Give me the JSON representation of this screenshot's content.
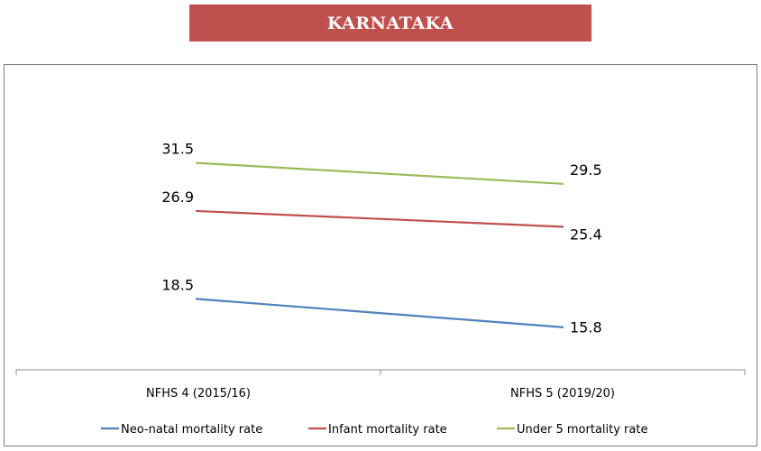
{
  "banner": {
    "title": "KARNATAKA"
  },
  "chart_data": {
    "type": "line",
    "categories": [
      "NFHS 4 (2015/16)",
      "NFHS 5 (2019/20)"
    ],
    "ylim": [
      10,
      35
    ],
    "grid": false,
    "legend_position": "bottom",
    "series": [
      {
        "name": "Neo-natal mortality rate",
        "values": [
          18.5,
          15.8
        ],
        "labels": [
          "18.5",
          "15.8"
        ],
        "color": "#4f81bd"
      },
      {
        "name": "Infant mortality rate",
        "values": [
          26.9,
          25.4
        ],
        "labels": [
          "26.9",
          "25.4"
        ],
        "color": "#c0504d"
      },
      {
        "name": "Under 5 mortality rate",
        "values": [
          31.5,
          29.5
        ],
        "labels": [
          "31.5",
          "29.5"
        ],
        "color": "#9bbb59"
      }
    ]
  }
}
